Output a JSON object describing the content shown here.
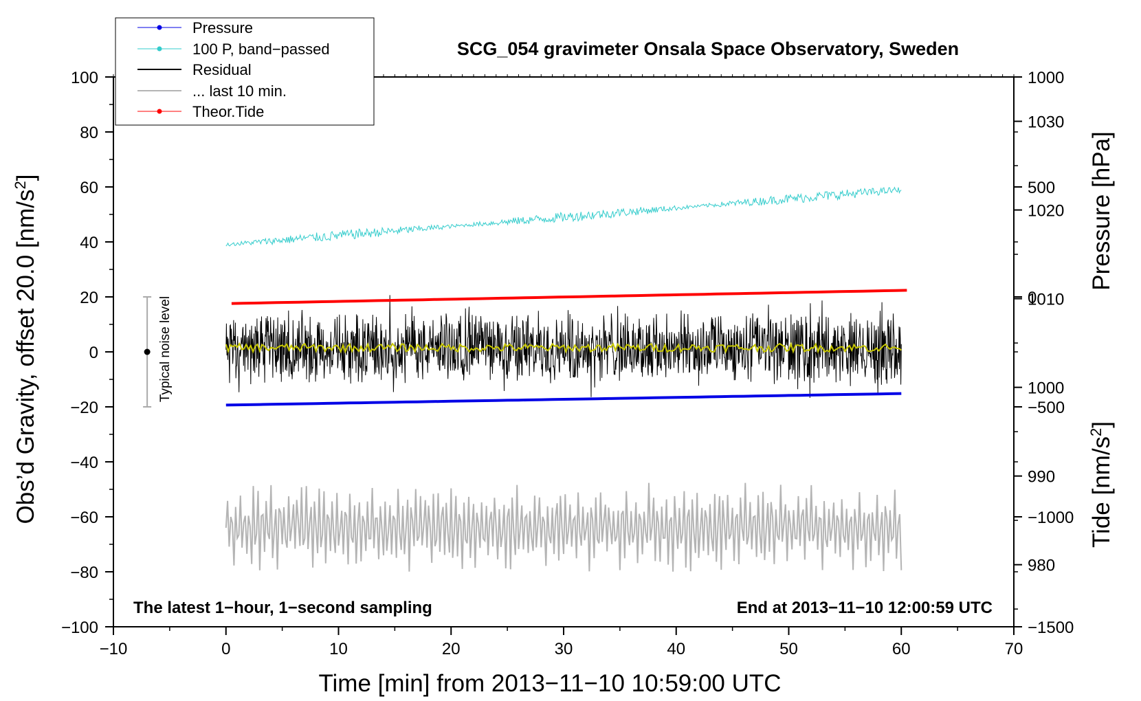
{
  "colors": {
    "pressure": "#0000e6",
    "band_passed": "#33cccc",
    "residual": "#000000",
    "last10": "#b4b4b4",
    "tide": "#ff0000",
    "smooth": "#c8c800",
    "noise_bar": "#aaaaaa"
  },
  "chart_data": {
    "type": "line",
    "title": "SCG_054 gravimeter Onsala Space Observatory, Sweden",
    "xlabel": "Time [min] from 2013−11−10 10:59:00 UTC",
    "ylabel_left": "Obs’d Gravity, offset 20.0 [nm/s²]",
    "ylabel_left_parts": [
      "Obs’d Gravity, offset 20.0 [nm/s",
      "2",
      "]"
    ],
    "ylabel_pressure": "Pressure [hPa]",
    "ylabel_tide": "Tide [nm/s²]",
    "ylabel_tide_parts": [
      "Tide [nm/s",
      "2",
      "]"
    ],
    "xlim": [
      -10,
      70
    ],
    "ylim": [
      -100,
      100
    ],
    "pressure_axis_range": [
      973,
      1035
    ],
    "tide_axis_range": [
      -1500,
      1000
    ],
    "x_ticks": [
      -10,
      0,
      10,
      20,
      30,
      40,
      50,
      60,
      70
    ],
    "x_tick_labels": [
      "−10",
      "0",
      "10",
      "20",
      "30",
      "40",
      "50",
      "60",
      "70"
    ],
    "y_ticks": [
      -100,
      -80,
      -60,
      -40,
      -20,
      0,
      20,
      40,
      60,
      80,
      100
    ],
    "y_tick_labels": [
      "−100",
      "−80",
      "−60",
      "−40",
      "−20",
      "0",
      "20",
      "40",
      "60",
      "80",
      "100"
    ],
    "pressure_ticks": [
      980,
      990,
      1000,
      1010,
      1020,
      1030
    ],
    "pressure_tick_labels": [
      "980",
      "990",
      "1000",
      "1010",
      "1020",
      "1030"
    ],
    "tide_ticks": [
      -1500,
      -1000,
      -500,
      0,
      500,
      1000
    ],
    "tide_tick_labels": [
      "−1500",
      "−1000",
      "−500",
      "0",
      "500",
      "1000"
    ],
    "legend": {
      "placement": "top-left",
      "entries": [
        {
          "label": "Pressure",
          "series": "pressure",
          "marker": true
        },
        {
          "label": "100 P, band−passed",
          "series": "band_passed",
          "marker": true
        },
        {
          "label": "Residual",
          "series": "residual",
          "marker": false
        },
        {
          "label": "... last 10 min.",
          "series": "last10",
          "marker": false
        },
        {
          "label": "Theor.Tide",
          "series": "tide",
          "marker": true
        }
      ]
    },
    "annotations": {
      "bottom_left": "The latest 1−hour, 1−second sampling",
      "bottom_right": "End at 2013−11−10 12:00:59 UTC",
      "noise_label": "Typical noise level"
    },
    "noise_bar": {
      "x": -7,
      "center": 0,
      "low": -20,
      "high": 20
    },
    "series": [
      {
        "name": "Pressure",
        "axis": "pressure",
        "x_range": [
          0,
          60
        ],
        "start": 998,
        "end": 999.3
      },
      {
        "name": "100 P, band−passed",
        "axis": "left",
        "x_range": [
          0,
          60
        ],
        "start": 39,
        "end": 59,
        "noise_amp": 3
      },
      {
        "name": "Residual",
        "axis": "left",
        "x_range": [
          0,
          60
        ],
        "center": 1.5,
        "amp": 20
      },
      {
        "name": "Residual smoothed",
        "axis": "left",
        "x_range": [
          0,
          60
        ],
        "center": 1.5,
        "amp": 1.5
      },
      {
        "name": "... last 10 min.",
        "axis": "left",
        "x_range": [
          0,
          60
        ],
        "center": -64,
        "amp": 17
      },
      {
        "name": "Theor.Tide",
        "axis": "tide",
        "x_range": [
          0.5,
          60.5
        ],
        "start": -30,
        "end": 30
      }
    ]
  }
}
